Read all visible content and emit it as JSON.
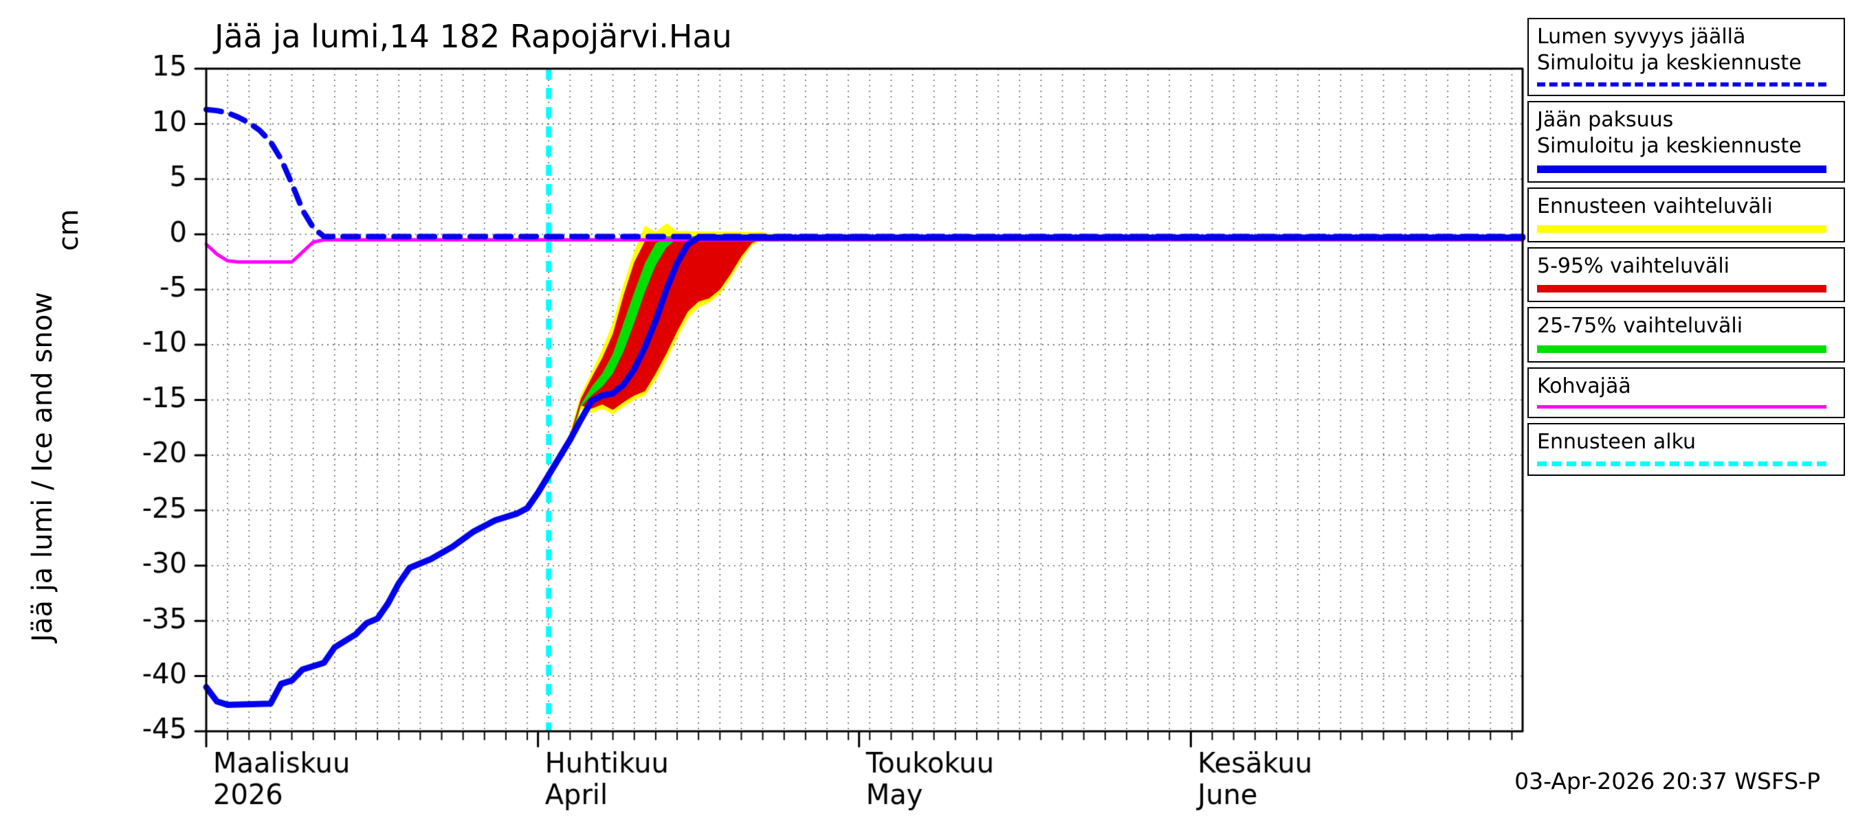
{
  "chart_data": {
    "type": "line",
    "title": "Jää ja lumi,14 182 Rapojärvi.Hau",
    "ylabel_units": "cm",
    "ylabel": "Jää ja lumi / Ice and snow",
    "ylim": [
      -45,
      15
    ],
    "yticks": [
      15,
      10,
      5,
      0,
      -5,
      -10,
      -15,
      -20,
      -25,
      -30,
      -35,
      -40,
      -45
    ],
    "x_range_days": [
      0,
      123
    ],
    "x_minor_tick_days": 2,
    "x_ticks": [
      {
        "day": 0,
        "label_fi": "Maaliskuu",
        "label_en": "2026"
      },
      {
        "day": 31,
        "label_fi": "Huhtikuu",
        "label_en": "April"
      },
      {
        "day": 61,
        "label_fi": "Toukokuu",
        "label_en": "May"
      },
      {
        "day": 92,
        "label_fi": "Kesäkuu",
        "label_en": "June"
      }
    ],
    "forecast_start_day": 32,
    "colors": {
      "blue": "#0000ee",
      "yellow": "#ffff00",
      "red": "#e00000",
      "green": "#00e000",
      "magenta": "#ff00ff",
      "cyan": "#00ffff",
      "grid": "#666666",
      "axis": "#000000"
    },
    "bands": [
      {
        "name": "ennusteen-vaihteluvali",
        "color": "#ffff00",
        "upper": [
          [
            34,
            -17.9
          ],
          [
            35,
            -14.5
          ],
          [
            36,
            -12.5
          ],
          [
            37,
            -10.4
          ],
          [
            38,
            -8.0
          ],
          [
            39,
            -4.5
          ],
          [
            40,
            -1.5
          ],
          [
            41,
            0.8
          ],
          [
            42,
            0.2
          ],
          [
            43,
            1.0
          ],
          [
            44,
            0.3
          ],
          [
            52,
            0.2
          ],
          [
            53,
            0.0
          ]
        ],
        "lower": [
          [
            34,
            -19.3
          ],
          [
            35,
            -15.8
          ],
          [
            36,
            -16.2
          ],
          [
            37,
            -15.8
          ],
          [
            38,
            -16.3
          ],
          [
            39,
            -15.6
          ],
          [
            40,
            -15.0
          ],
          [
            41,
            -14.6
          ],
          [
            42,
            -13.2
          ],
          [
            43,
            -11.4
          ],
          [
            44,
            -9.4
          ],
          [
            45,
            -7.6
          ],
          [
            46,
            -6.6
          ],
          [
            47,
            -6.2
          ],
          [
            48,
            -5.4
          ],
          [
            49,
            -4.0
          ],
          [
            50,
            -2.4
          ],
          [
            51,
            -1.0
          ],
          [
            53,
            0.0
          ]
        ]
      },
      {
        "name": "5-95-vaihteluvali",
        "color": "#e00000",
        "upper": [
          [
            34,
            -18.2
          ],
          [
            35,
            -14.9
          ],
          [
            36,
            -13.0
          ],
          [
            37,
            -11.2
          ],
          [
            38,
            -9.0
          ],
          [
            39,
            -5.5
          ],
          [
            40,
            -2.5
          ],
          [
            41,
            -0.6
          ],
          [
            42,
            -0.2
          ],
          [
            53,
            -0.1
          ]
        ],
        "lower": [
          [
            34,
            -19.0
          ],
          [
            35,
            -15.5
          ],
          [
            36,
            -15.8
          ],
          [
            37,
            -15.4
          ],
          [
            38,
            -15.9
          ],
          [
            39,
            -15.2
          ],
          [
            40,
            -14.6
          ],
          [
            41,
            -14.2
          ],
          [
            42,
            -12.6
          ],
          [
            43,
            -10.8
          ],
          [
            44,
            -8.8
          ],
          [
            45,
            -7.0
          ],
          [
            46,
            -6.1
          ],
          [
            47,
            -5.8
          ],
          [
            48,
            -5.0
          ],
          [
            49,
            -3.6
          ],
          [
            50,
            -2.0
          ],
          [
            51,
            -0.8
          ],
          [
            53,
            -0.1
          ]
        ]
      },
      {
        "name": "25-75-vaihteluvali",
        "color": "#00e000",
        "upper": [
          [
            34,
            -18.4
          ],
          [
            35,
            -15.4
          ],
          [
            36,
            -13.8
          ],
          [
            37,
            -12.6
          ],
          [
            38,
            -10.8
          ],
          [
            39,
            -8.0
          ],
          [
            40,
            -5.2
          ],
          [
            41,
            -2.6
          ],
          [
            42,
            -0.8
          ],
          [
            43,
            -0.2
          ],
          [
            53,
            -0.15
          ]
        ],
        "lower": [
          [
            34,
            -18.8
          ],
          [
            35,
            -15.6
          ],
          [
            36,
            -14.6
          ],
          [
            37,
            -13.8
          ],
          [
            38,
            -12.6
          ],
          [
            39,
            -10.6
          ],
          [
            40,
            -8.0
          ],
          [
            41,
            -5.2
          ],
          [
            42,
            -2.8
          ],
          [
            43,
            -1.2
          ],
          [
            44,
            -0.4
          ],
          [
            53,
            -0.25
          ]
        ]
      }
    ],
    "series": [
      {
        "name": "kohvajaa",
        "label": "Kohvajää",
        "color": "#ff00ff",
        "style": "solid",
        "width": 5,
        "points": [
          [
            0,
            -0.9
          ],
          [
            1,
            -1.8
          ],
          [
            2,
            -2.4
          ],
          [
            3,
            -2.5
          ],
          [
            8,
            -2.5
          ],
          [
            9,
            -1.6
          ],
          [
            10,
            -0.7
          ],
          [
            11,
            -0.5
          ],
          [
            123,
            -0.5
          ]
        ]
      },
      {
        "name": "ice-thickness-sim",
        "label": "Jään paksuus Simuloitu ja keskiennuste",
        "color": "#0000ee",
        "style": "solid",
        "width": 9,
        "points": [
          [
            0,
            -41.0
          ],
          [
            1,
            -42.3
          ],
          [
            2,
            -42.6
          ],
          [
            6,
            -42.5
          ],
          [
            7,
            -40.7
          ],
          [
            8,
            -40.4
          ],
          [
            9,
            -39.4
          ],
          [
            11,
            -38.8
          ],
          [
            12,
            -37.4
          ],
          [
            14,
            -36.2
          ],
          [
            15,
            -35.2
          ],
          [
            16,
            -34.8
          ],
          [
            17,
            -33.4
          ],
          [
            18,
            -31.6
          ],
          [
            19,
            -30.2
          ],
          [
            21,
            -29.4
          ],
          [
            23,
            -28.3
          ],
          [
            25,
            -26.9
          ],
          [
            27,
            -25.9
          ],
          [
            29,
            -25.3
          ],
          [
            30,
            -24.8
          ],
          [
            31,
            -23.4
          ],
          [
            32,
            -21.8
          ],
          [
            33,
            -20.2
          ],
          [
            34,
            -18.6
          ],
          [
            35,
            -16.8
          ],
          [
            36,
            -15.1
          ],
          [
            37,
            -14.6
          ],
          [
            38,
            -14.4
          ],
          [
            39,
            -13.6
          ],
          [
            40,
            -12.2
          ],
          [
            41,
            -10.2
          ],
          [
            42,
            -7.8
          ],
          [
            43,
            -5.0
          ],
          [
            44,
            -2.6
          ],
          [
            45,
            -0.9
          ],
          [
            46,
            -0.3
          ],
          [
            123,
            -0.3
          ]
        ]
      },
      {
        "name": "snow-depth-on-ice-sim",
        "label": "Lumen syvyys jäällä Simuloitu ja keskiennuste",
        "color": "#0000ee",
        "style": "dashed",
        "width": 8,
        "points": [
          [
            0,
            11.3
          ],
          [
            1,
            11.2
          ],
          [
            2,
            11.0
          ],
          [
            3,
            10.6
          ],
          [
            4,
            10.1
          ],
          [
            5,
            9.4
          ],
          [
            6,
            8.4
          ],
          [
            7,
            6.8
          ],
          [
            8,
            4.6
          ],
          [
            9,
            2.2
          ],
          [
            10,
            0.6
          ],
          [
            11,
            -0.2
          ],
          [
            123,
            -0.2
          ]
        ]
      }
    ]
  },
  "legend": {
    "items": [
      {
        "line1": "Lumen syvyys jäällä",
        "line2": "Simuloitu ja keskiennuste",
        "color": "#0000ee",
        "style": "dashed",
        "weight": 6
      },
      {
        "line1": "Jään paksuus",
        "line2": "Simuloitu ja keskiennuste",
        "color": "#0000ee",
        "style": "solid",
        "weight": 11
      },
      {
        "line1": "Ennusteen vaihteluväli",
        "line2": "",
        "color": "#ffff00",
        "style": "solid",
        "weight": 11
      },
      {
        "line1": "5-95% vaihteluväli",
        "line2": "",
        "color": "#e00000",
        "style": "solid",
        "weight": 11
      },
      {
        "line1": "25-75% vaihteluväli",
        "line2": "",
        "color": "#00e000",
        "style": "solid",
        "weight": 11
      },
      {
        "line1": "Kohvajää",
        "line2": "",
        "color": "#ff00ff",
        "style": "solid",
        "weight": 5
      },
      {
        "line1": "Ennusteen alku",
        "line2": "",
        "color": "#00ffff",
        "style": "dashed",
        "weight": 7
      }
    ]
  },
  "footer": {
    "stamp": "03-Apr-2026 20:37 WSFS-P"
  }
}
